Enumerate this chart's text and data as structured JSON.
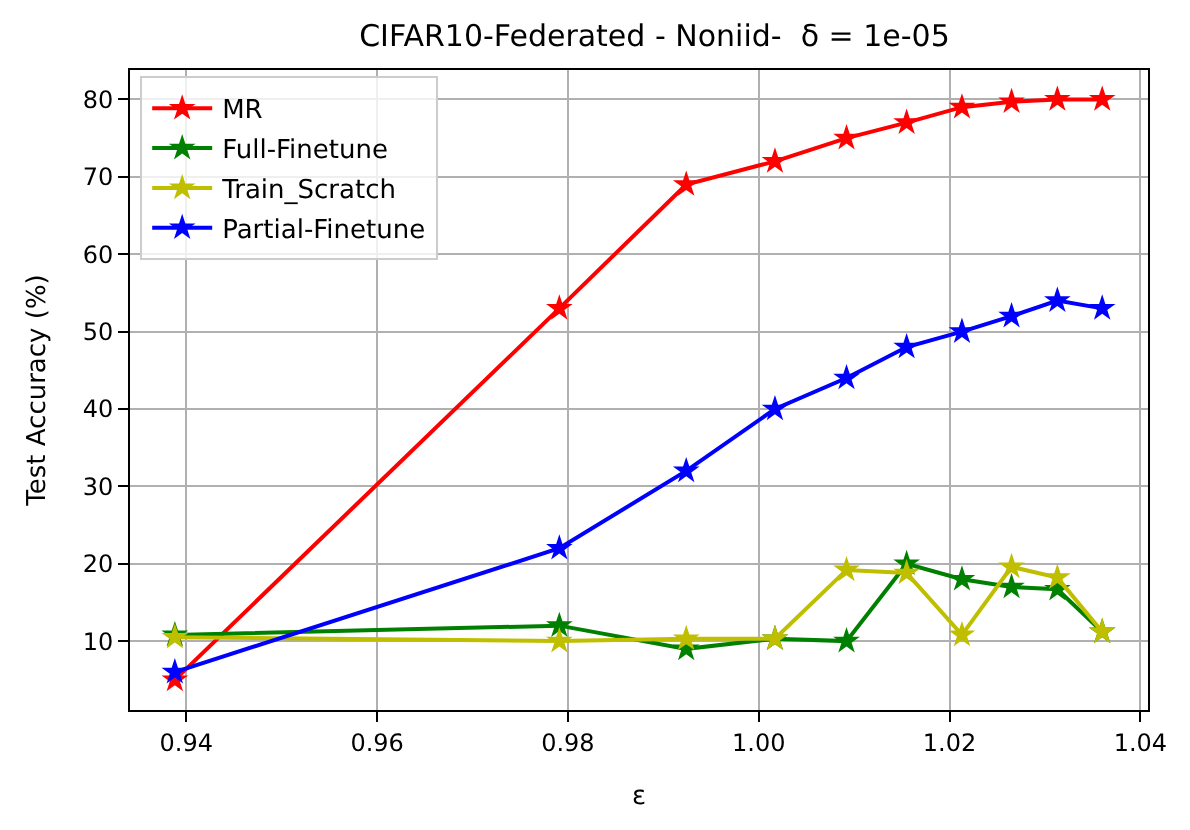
{
  "chart_data": {
    "type": "line",
    "title": "CIFAR10-Federated - Noniid-  δ = 1e-05",
    "xlabel": "ε",
    "ylabel": "Test Accuracy (%)",
    "x": [
      0.9388,
      0.9791,
      0.9924,
      1.0017,
      1.0092,
      1.0155,
      1.0213,
      1.0265,
      1.0313,
      1.036
    ],
    "series": [
      {
        "name": "MR",
        "color": "#ff0000",
        "values": [
          5,
          53,
          69,
          72,
          75,
          77,
          79,
          79.7,
          80,
          80
        ]
      },
      {
        "name": "Full-Finetune",
        "color": "#008000",
        "values": [
          10.8,
          12,
          9,
          10.3,
          10,
          20,
          18,
          17,
          16.7,
          11.2
        ]
      },
      {
        "name": "Train_Scratch",
        "color": "#bfbf00",
        "values": [
          10.5,
          10,
          10.3,
          10.3,
          19.2,
          18.8,
          10.8,
          19.6,
          18.2,
          11.2
        ]
      },
      {
        "name": "Partial-Finetune",
        "color": "#0000ff",
        "values": [
          6,
          22,
          32,
          40,
          44,
          48,
          50,
          52,
          54,
          53
        ]
      }
    ],
    "xlim": [
      0.9341,
      1.0408
    ],
    "xticks": [
      {
        "value": 0.94,
        "label": "0.94"
      },
      {
        "value": 0.96,
        "label": "0.96"
      },
      {
        "value": 0.98,
        "label": "0.98"
      },
      {
        "value": 1.0,
        "label": "1.00"
      },
      {
        "value": 1.02,
        "label": "1.02"
      },
      {
        "value": 1.04,
        "label": "1.04"
      }
    ],
    "ylim": [
      1.1,
      83.8
    ],
    "yticks": [
      10,
      20,
      30,
      40,
      50,
      60,
      70,
      80
    ],
    "grid": true,
    "legend": "top left",
    "marker": "star",
    "line_style": "solid"
  }
}
